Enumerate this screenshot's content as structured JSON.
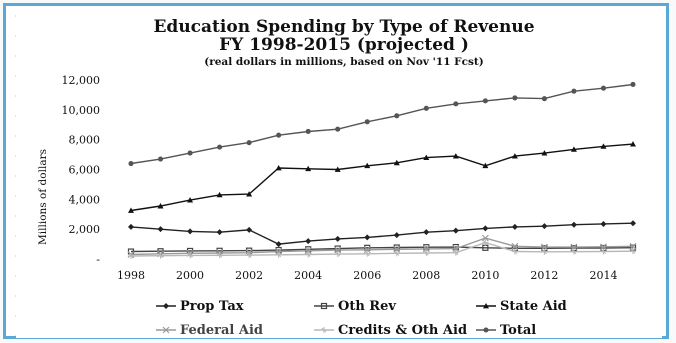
{
  "chart_data": {
    "type": "line",
    "title": "Education Spending by Type of Revenue",
    "title_line2": "FY 1998-2015 (projected )",
    "subtitle": "(real dollars in millions, based on  Nov '11 Fcst)",
    "xlabel": "",
    "ylabel": "Millions of dollars",
    "xlim": [
      1998,
      2015
    ],
    "ylim": [
      0,
      12000
    ],
    "x_ticks": [
      "1998",
      "2000",
      "2002",
      "2004",
      "2006",
      "2008",
      "2010",
      "2012",
      "2014"
    ],
    "y_ticks": [
      "-",
      "2,000",
      "4,000",
      "6,000",
      "8,000",
      "10,000",
      "12,000"
    ],
    "grid": false,
    "legend_position": "bottom",
    "x": [
      1998,
      1999,
      2000,
      2001,
      2002,
      2003,
      2004,
      2005,
      2006,
      2007,
      2008,
      2009,
      2010,
      2011,
      2012,
      2013,
      2014,
      2015
    ],
    "series": [
      {
        "name": "Prop Tax",
        "marker": "diamond",
        "color": "#222222",
        "values": [
          2150,
          2000,
          1850,
          1800,
          1950,
          1000,
          1200,
          1350,
          1450,
          1600,
          1800,
          1900,
          2050,
          2150,
          2200,
          2300,
          2350,
          2400
        ]
      },
      {
        "name": "Oth Rev",
        "marker": "square",
        "color": "#444444",
        "values": [
          500,
          520,
          540,
          550,
          560,
          600,
          650,
          700,
          750,
          770,
          790,
          800,
          750,
          720,
          720,
          730,
          740,
          760
        ]
      },
      {
        "name": "State Aid",
        "marker": "triangle",
        "color": "#111111",
        "values": [
          3250,
          3550,
          3950,
          4300,
          4350,
          6100,
          6050,
          6000,
          6250,
          6450,
          6800,
          6900,
          6250,
          6900,
          7100,
          7350,
          7550,
          7700
        ]
      },
      {
        "name": "Federal Aid",
        "marker": "x",
        "color": "#9a9a9a",
        "values": [
          300,
          350,
          380,
          400,
          420,
          500,
          550,
          600,
          620,
          650,
          680,
          700,
          1400,
          850,
          800,
          800,
          820,
          850
        ]
      },
      {
        "name": "Credits & Oth Aid",
        "marker": "star",
        "color": "#b8b8b8",
        "values": [
          200,
          220,
          240,
          250,
          260,
          280,
          300,
          330,
          350,
          380,
          400,
          420,
          1100,
          500,
          480,
          490,
          500,
          520
        ]
      },
      {
        "name": "Total",
        "marker": "circle",
        "color": "#555555",
        "values": [
          6400,
          6700,
          7100,
          7500,
          7800,
          8300,
          8550,
          8700,
          9200,
          9600,
          10100,
          10400,
          10600,
          10800,
          10750,
          11250,
          11450,
          11700
        ]
      }
    ]
  }
}
